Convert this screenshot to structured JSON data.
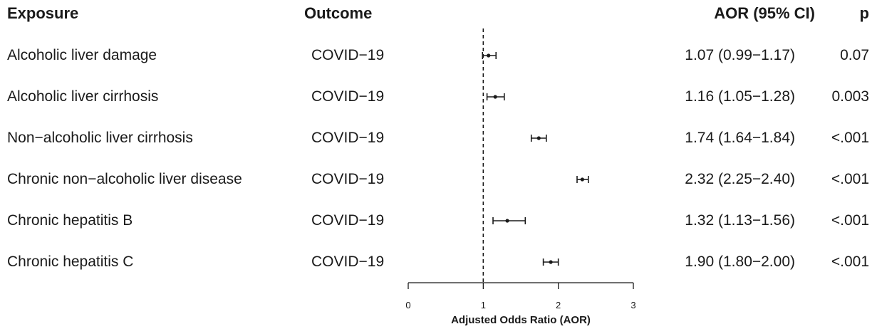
{
  "headers": {
    "exposure": "Exposure",
    "outcome": "Outcome",
    "aor": "AOR (95% CI)",
    "p": "p"
  },
  "rows": [
    {
      "exposure": "Alcoholic liver damage",
      "outcome": "COVID−19",
      "aor_text": "1.07 (0.99−1.17)",
      "p": "0.07"
    },
    {
      "exposure": "Alcoholic liver cirrhosis",
      "outcome": "COVID−19",
      "aor_text": "1.16 (1.05−1.28)",
      "p": "0.003"
    },
    {
      "exposure": "Non−alcoholic liver cirrhosis",
      "outcome": "COVID−19",
      "aor_text": "1.74 (1.64−1.84)",
      "p": "<.001"
    },
    {
      "exposure": "Chronic non−alcoholic liver disease",
      "outcome": "COVID−19",
      "aor_text": "2.32 (2.25−2.40)",
      "p": "<.001"
    },
    {
      "exposure": "Chronic hepatitis B",
      "outcome": "COVID−19",
      "aor_text": "1.32 (1.13−1.56)",
      "p": "<.001"
    },
    {
      "exposure": "Chronic hepatitis C",
      "outcome": "COVID−19",
      "aor_text": "1.90 (1.80−2.00)",
      "p": "<.001"
    }
  ],
  "chart_data": {
    "type": "scatter",
    "subtype": "forest-plot",
    "categories": [
      "Alcoholic liver damage",
      "Alcoholic liver cirrhosis",
      "Non−alcoholic liver cirrhosis",
      "Chronic non−alcoholic liver disease",
      "Chronic hepatitis B",
      "Chronic hepatitis C"
    ],
    "values": [
      1.07,
      1.16,
      1.74,
      2.32,
      1.32,
      1.9
    ],
    "ci_lower": [
      0.99,
      1.05,
      1.64,
      2.25,
      1.13,
      1.8
    ],
    "ci_upper": [
      1.17,
      1.28,
      1.84,
      2.4,
      1.56,
      2.0
    ],
    "reference_line": 1,
    "xlabel": "Adjusted Odds Ratio (AOR)",
    "xlim": [
      0,
      3
    ],
    "xticks": [
      "0",
      "1",
      "2",
      "3"
    ],
    "grid": false,
    "colors": {
      "ink": "#1a1a1a"
    }
  }
}
